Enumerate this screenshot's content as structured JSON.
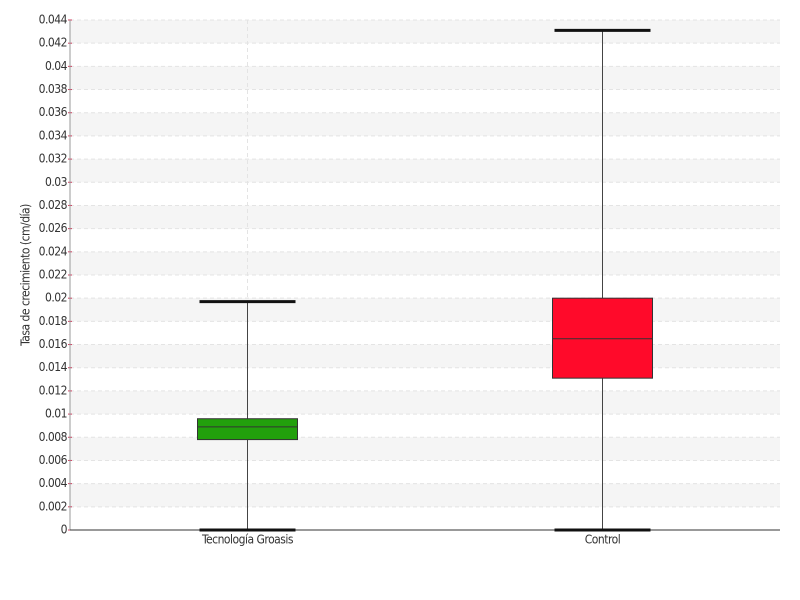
{
  "chart_data": {
    "type": "box",
    "ylabel": "Tasa de crecimiento (cm/día)",
    "categories": [
      "Tecnología Groasis",
      "Control"
    ],
    "boxes": [
      {
        "color": "#22a00c",
        "min": 0,
        "q1": 0.0078,
        "median": 0.0089,
        "q3": 0.0096,
        "max": 0.0197
      },
      {
        "color": "#ff0a2a",
        "min": 0,
        "q1": 0.0131,
        "median": 0.0165,
        "q3": 0.02,
        "max": 0.0431
      }
    ],
    "ylim": [
      0,
      0.044
    ],
    "yticks": [
      0,
      0.002,
      0.004,
      0.006,
      0.008,
      0.01,
      0.012,
      0.014,
      0.016,
      0.018,
      0.02,
      0.022,
      0.024,
      0.026,
      0.028,
      0.03,
      0.032,
      0.034,
      0.036,
      0.038,
      0.04,
      0.042,
      0.044
    ],
    "grid": true
  }
}
